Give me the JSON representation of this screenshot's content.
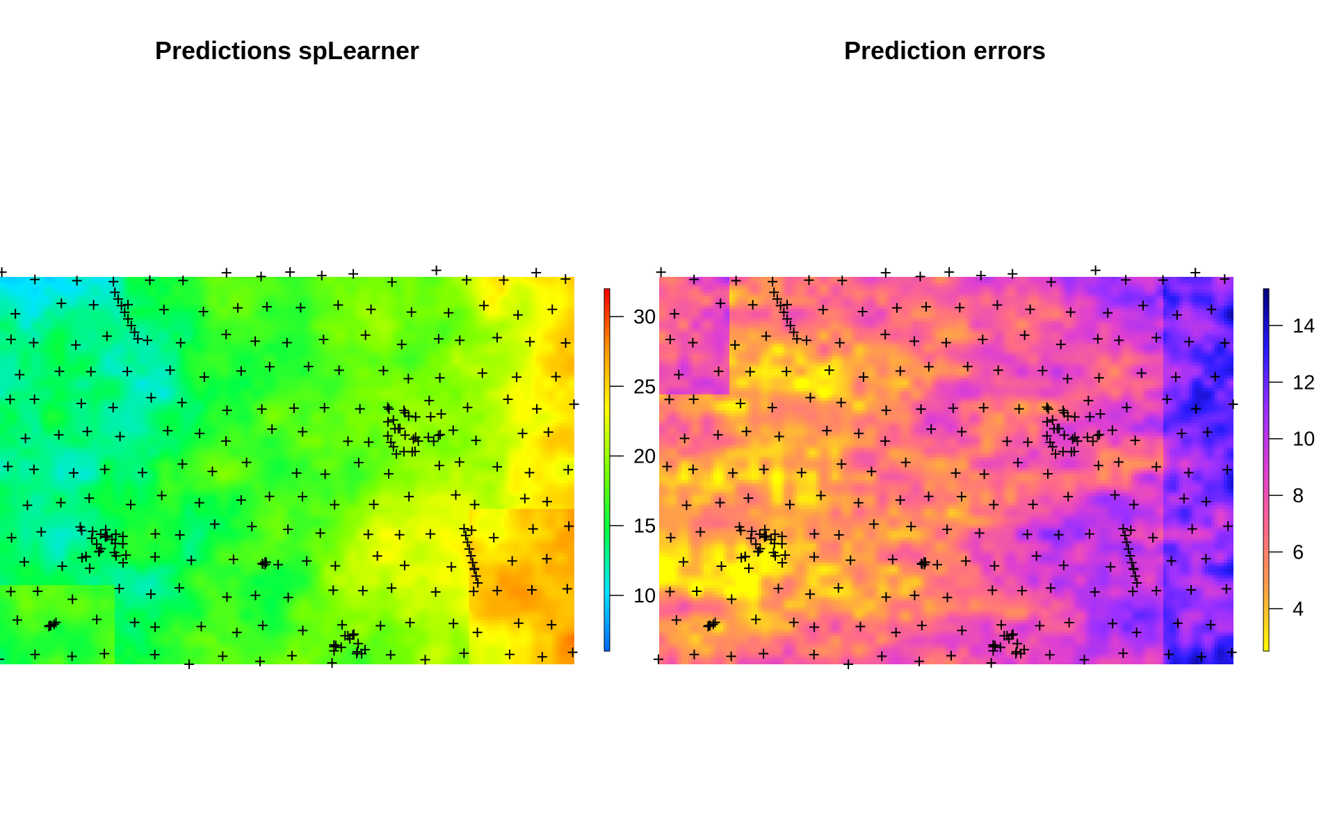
{
  "chart_data": [
    {
      "type": "heatmap",
      "title": "Predictions spLearner",
      "colorbar": {
        "min": 6.0,
        "max": 32.0,
        "ticks": [
          10,
          15,
          20,
          25,
          30
        ],
        "palette": [
          "#0066ff",
          "#00e5ff",
          "#00ff44",
          "#7cff00",
          "#ffff00",
          "#ff9900",
          "#ff0000"
        ]
      },
      "field": "smooth gradient: low values (cyan ~10-14) in the west/north-west, rising to green (~17-20) in the centre and yellow/orange (~24-27) towards the east and south-east"
    },
    {
      "type": "heatmap",
      "title": "Prediction errors",
      "colorbar": {
        "min": 2.5,
        "max": 15.3,
        "ticks": [
          4,
          6,
          8,
          10,
          12,
          14
        ],
        "palette": [
          "#ffff00",
          "#ffa544",
          "#ff6a88",
          "#e040d0",
          "#9b30ff",
          "#2a1cff",
          "#000080"
        ]
      },
      "field": "low errors (yellow/orange ~3-6) in the west and centre, high errors (purple/blue ~9-14) in the east and along the southern edge"
    }
  ]
}
